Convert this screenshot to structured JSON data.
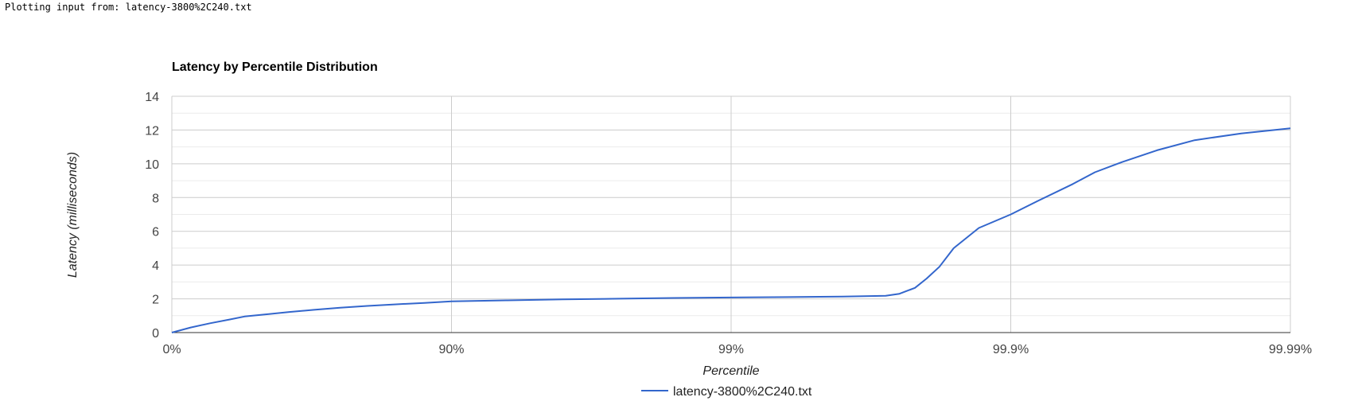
{
  "header": {
    "text": "Plotting input from: latency-3800%2C240.txt"
  },
  "chart_data": {
    "type": "line",
    "title": "Latency by Percentile Distribution",
    "xlabel": "Percentile",
    "ylabel": "Latency (milliseconds)",
    "x_scale": "log-inverse-percentile",
    "x_ticks": [
      "0%",
      "90%",
      "99%",
      "99.9%",
      "99.99%"
    ],
    "y_ticks": [
      "0",
      "2",
      "4",
      "6",
      "8",
      "10",
      "12",
      "14"
    ],
    "ylim": [
      0,
      14
    ],
    "grid": true,
    "legend": "bottom",
    "series_color": "#3366cc",
    "series": [
      {
        "name": "latency-3800%2C240.txt",
        "points": [
          {
            "percentile": 0,
            "value": 0.0
          },
          {
            "percentile": 14.4,
            "value": 0.3
          },
          {
            "percentile": 27.0,
            "value": 0.55
          },
          {
            "percentile": 38.0,
            "value": 0.78
          },
          {
            "percentile": 45.0,
            "value": 0.95
          },
          {
            "percentile": 55.0,
            "value": 1.1
          },
          {
            "percentile": 62.0,
            "value": 1.22
          },
          {
            "percentile": 69.0,
            "value": 1.35
          },
          {
            "percentile": 75.0,
            "value": 1.47
          },
          {
            "percentile": 80.0,
            "value": 1.58
          },
          {
            "percentile": 84.0,
            "value": 1.67
          },
          {
            "percentile": 87.5,
            "value": 1.76
          },
          {
            "percentile": 90.0,
            "value": 1.85
          },
          {
            "percentile": 93.7,
            "value": 1.91
          },
          {
            "percentile": 96.0,
            "value": 1.97
          },
          {
            "percentile": 97.5,
            "value": 2.01
          },
          {
            "percentile": 98.4,
            "value": 2.05
          },
          {
            "percentile": 99.0,
            "value": 2.08
          },
          {
            "percentile": 99.37,
            "value": 2.1
          },
          {
            "percentile": 99.6,
            "value": 2.13
          },
          {
            "percentile": 99.72,
            "value": 2.18
          },
          {
            "percentile": 99.75,
            "value": 2.3
          },
          {
            "percentile": 99.78,
            "value": 2.65
          },
          {
            "percentile": 99.8,
            "value": 3.2
          },
          {
            "percentile": 99.82,
            "value": 3.9
          },
          {
            "percentile": 99.84,
            "value": 5.0
          },
          {
            "percentile": 99.87,
            "value": 6.2
          },
          {
            "percentile": 99.9,
            "value": 7.0
          },
          {
            "percentile": 99.92,
            "value": 7.8
          },
          {
            "percentile": 99.94,
            "value": 8.8
          },
          {
            "percentile": 99.95,
            "value": 9.5
          },
          {
            "percentile": 99.96,
            "value": 10.1
          },
          {
            "percentile": 99.97,
            "value": 10.8
          },
          {
            "percentile": 99.978,
            "value": 11.4
          },
          {
            "percentile": 99.985,
            "value": 11.8
          },
          {
            "percentile": 99.99,
            "value": 12.1
          }
        ]
      }
    ]
  }
}
